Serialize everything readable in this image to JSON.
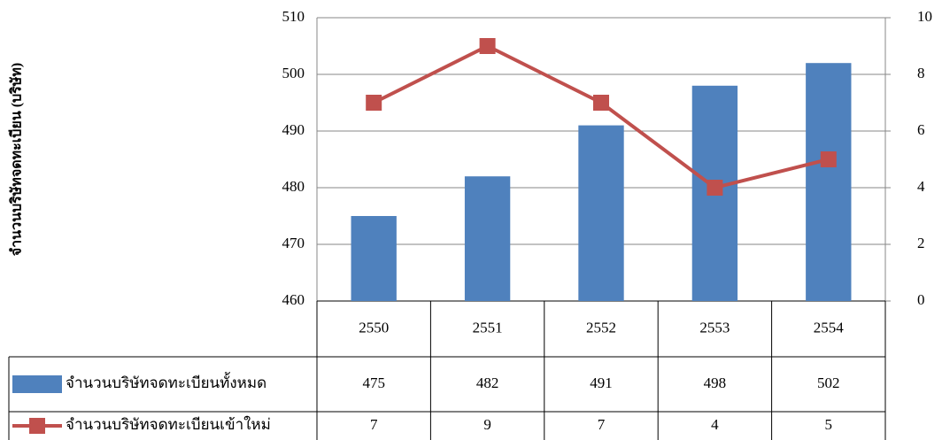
{
  "chart_data": {
    "type": "bar-line",
    "y_label": "จำนวนบริษัทจดทะเบียน (บริษัท)",
    "categories": [
      "2550",
      "2551",
      "2552",
      "2553",
      "2554"
    ],
    "series": [
      {
        "name": "จำนวนบริษัทจดทะเบียนทั้งหมด",
        "type": "bar",
        "color": "#4f81bd",
        "values": [
          475,
          482,
          491,
          498,
          502
        ]
      },
      {
        "name": "จำนวนบริษัทจดทะเบียนเข้าใหม่",
        "type": "line",
        "axis": "y2",
        "color": "#c0504d",
        "values": [
          7,
          9,
          7,
          4,
          5
        ]
      }
    ],
    "ylim": [
      460,
      510
    ],
    "yticks": [
      460,
      470,
      480,
      490,
      500,
      510
    ],
    "y2lim": [
      0,
      10
    ],
    "y2ticks": [
      0,
      2,
      4,
      6,
      8,
      10
    ],
    "grid": true
  }
}
